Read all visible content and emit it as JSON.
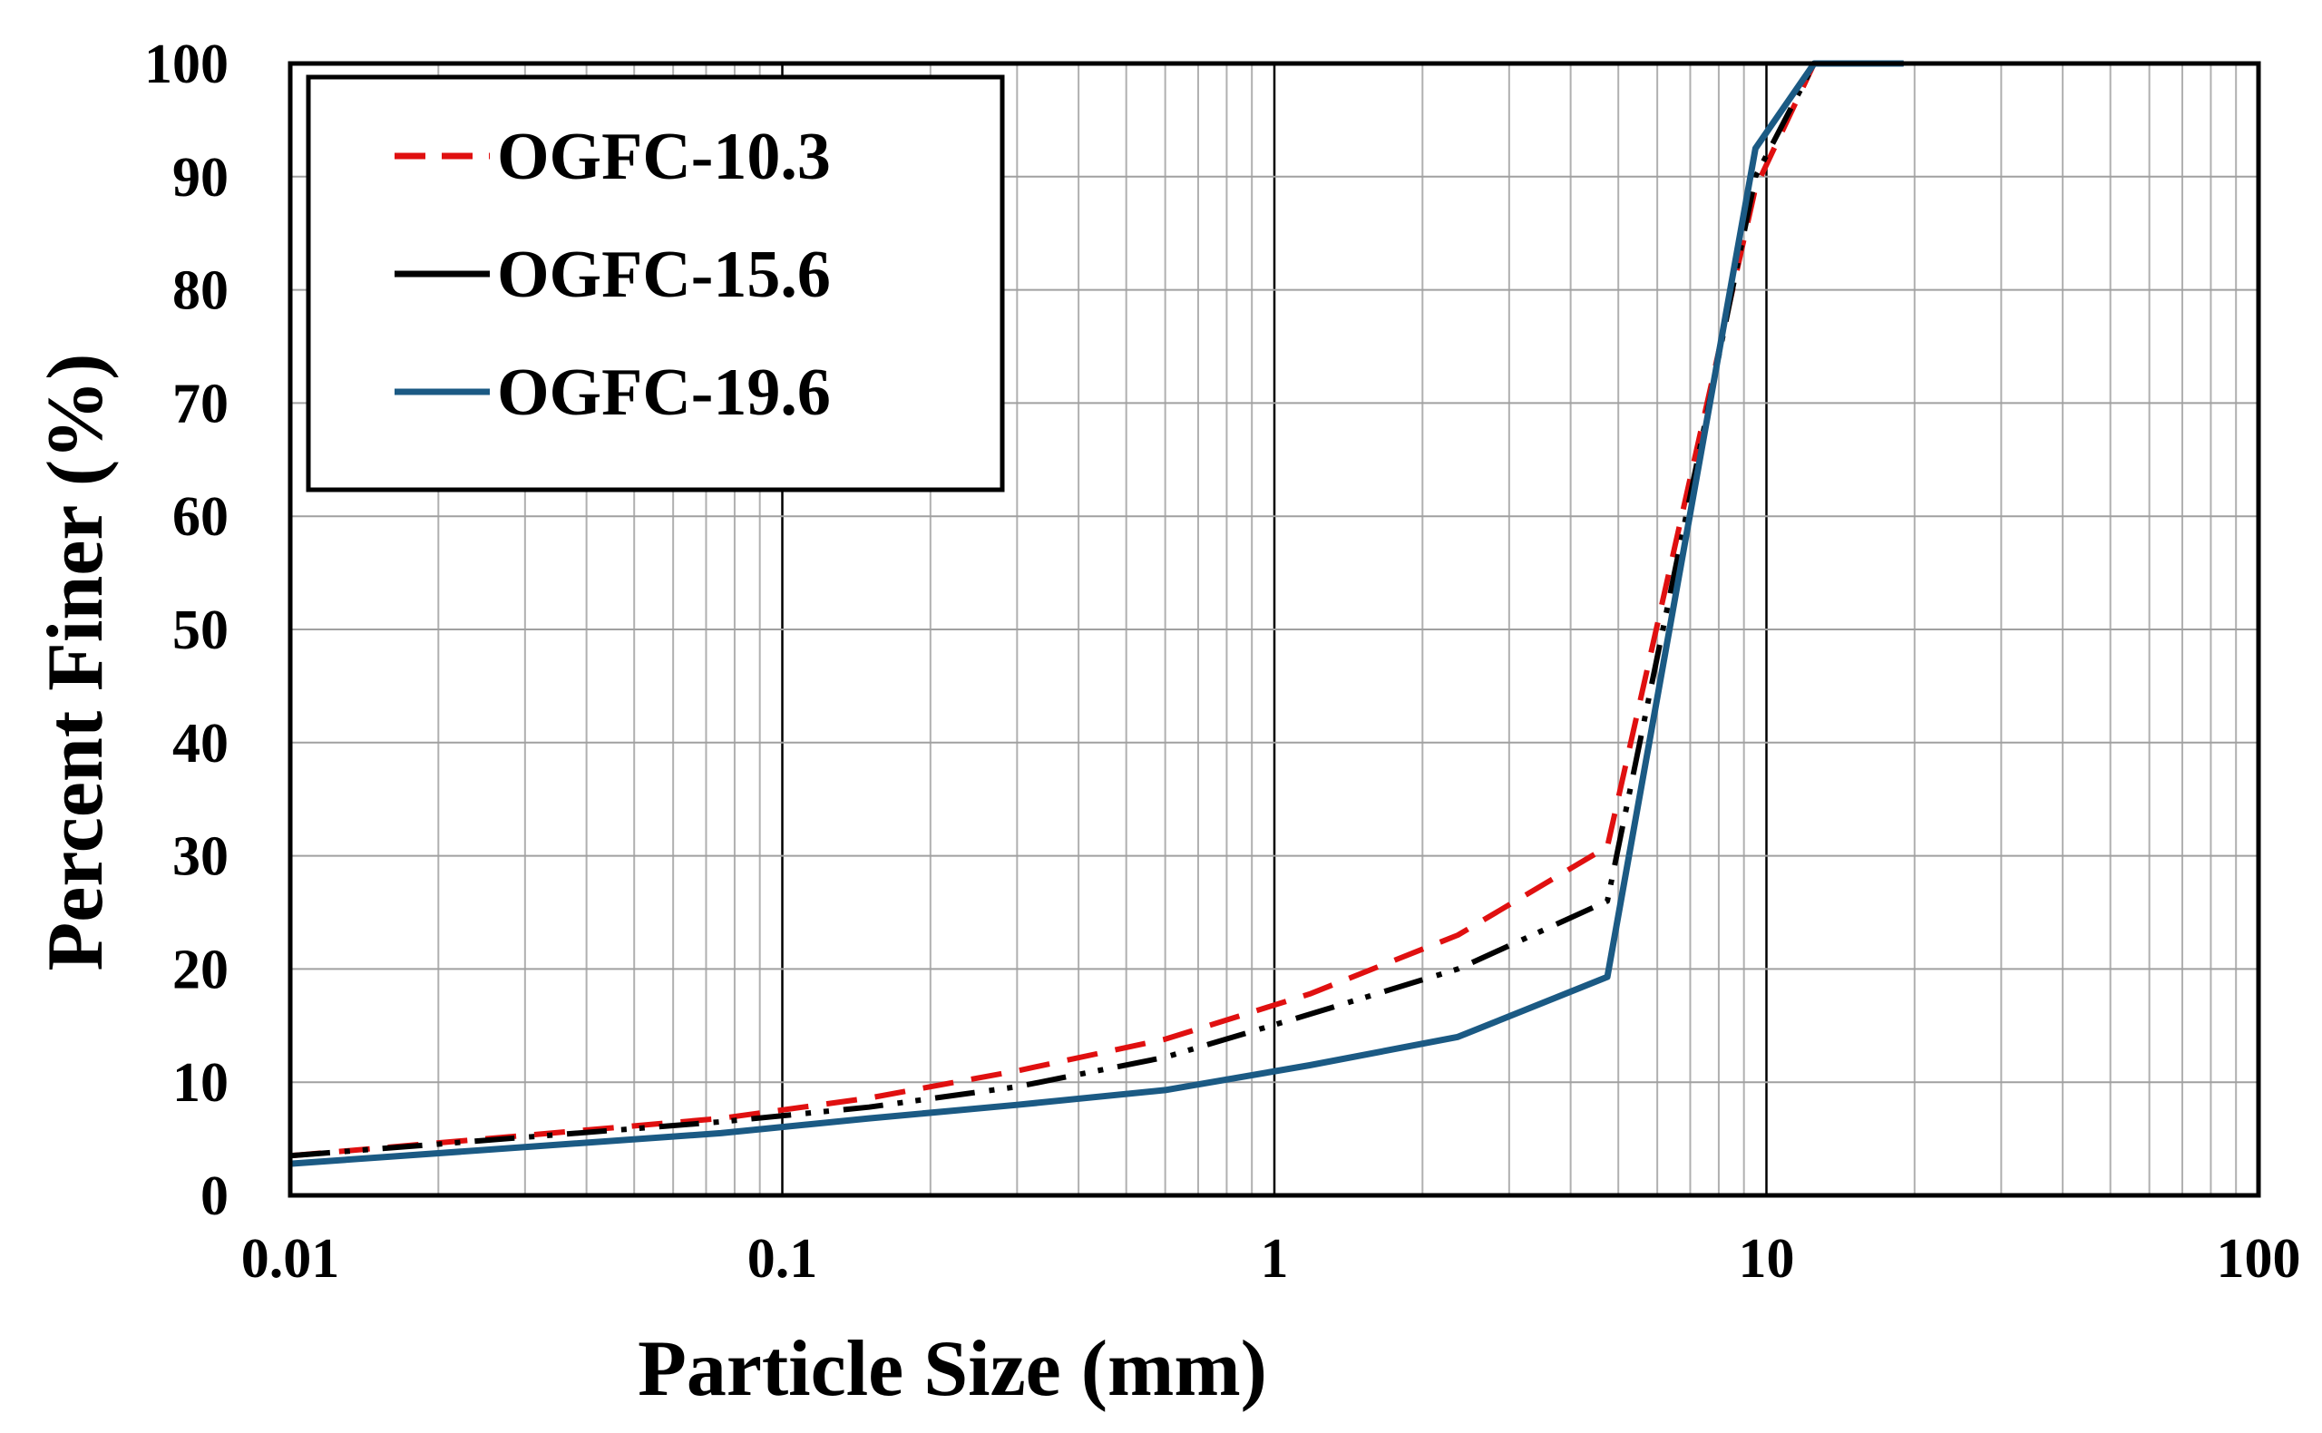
{
  "chart_data": {
    "type": "line",
    "title": "",
    "xlabel": "Particle Size (mm)",
    "ylabel": "Percent Finer (%)",
    "xscale": "log",
    "xlim": [
      0.01,
      100
    ],
    "ylim": [
      0,
      100
    ],
    "x_ticks": [
      0.01,
      0.1,
      1,
      10,
      100
    ],
    "x_tick_labels": [
      "0.01",
      "0.1",
      "1",
      "10",
      "100"
    ],
    "y_ticks": [
      0,
      10,
      20,
      30,
      40,
      50,
      60,
      70,
      80,
      90,
      100
    ],
    "y_tick_labels": [
      "0",
      "10",
      "20",
      "30",
      "40",
      "50",
      "60",
      "70",
      "80",
      "90",
      "100"
    ],
    "grid": true,
    "legend_position": "top-left",
    "series": [
      {
        "name": "OGFC-10.3",
        "style": "dashed",
        "color": "#e01010",
        "x": [
          0.01,
          0.075,
          0.15,
          0.3,
          0.6,
          1.18,
          2.36,
          4.75,
          9.5,
          12.5,
          19
        ],
        "y": [
          3.5,
          6.8,
          8.6,
          11,
          13.8,
          17.8,
          23,
          30.8,
          89,
          100,
          100
        ]
      },
      {
        "name": "OGFC-15.6",
        "style": "dash-dot-dot",
        "color": "#000000",
        "x": [
          0.01,
          0.075,
          0.15,
          0.3,
          0.6,
          1.18,
          2.36,
          4.75,
          9.5,
          12.5,
          19
        ],
        "y": [
          3.5,
          6.5,
          7.8,
          9.6,
          12.2,
          16,
          20,
          26,
          90,
          100,
          100
        ]
      },
      {
        "name": "OGFC-19.6",
        "style": "solid",
        "color": "#1b5a84",
        "x": [
          0.01,
          0.075,
          0.15,
          0.3,
          0.6,
          1.18,
          2.36,
          4.75,
          9.5,
          12.5,
          19
        ],
        "y": [
          2.8,
          5.5,
          6.8,
          8,
          9.3,
          11.5,
          14,
          19.3,
          92.5,
          100,
          100
        ]
      }
    ]
  }
}
